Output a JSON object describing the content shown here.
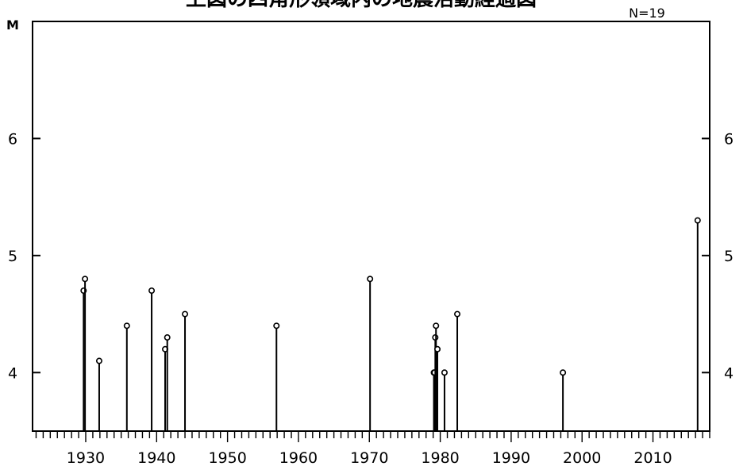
{
  "chart_data": {
    "type": "stem",
    "title": "上図の四角形領域内の地震活動経過図",
    "count_label": "N=19",
    "ylabel": "M",
    "xlim": [
      1922.5,
      2018
    ],
    "ylim": [
      3.5,
      7.0
    ],
    "x_ticks": [
      1930,
      1940,
      1950,
      1960,
      1970,
      1980,
      1990,
      2000,
      2010
    ],
    "y_ticks": [
      4,
      5,
      6
    ],
    "grid": false,
    "points": [
      {
        "x": 1929.7,
        "y": 4.7
      },
      {
        "x": 1929.9,
        "y": 4.8
      },
      {
        "x": 1931.9,
        "y": 4.1
      },
      {
        "x": 1935.8,
        "y": 4.4
      },
      {
        "x": 1939.3,
        "y": 4.7
      },
      {
        "x": 1941.2,
        "y": 4.2
      },
      {
        "x": 1941.5,
        "y": 4.3
      },
      {
        "x": 1944.0,
        "y": 4.5
      },
      {
        "x": 1956.9,
        "y": 4.4
      },
      {
        "x": 1970.1,
        "y": 4.8
      },
      {
        "x": 1979.1,
        "y": 4.0
      },
      {
        "x": 1979.2,
        "y": 4.0
      },
      {
        "x": 1979.3,
        "y": 4.3
      },
      {
        "x": 1979.4,
        "y": 4.4
      },
      {
        "x": 1979.6,
        "y": 4.2
      },
      {
        "x": 1980.6,
        "y": 4.0
      },
      {
        "x": 1982.4,
        "y": 4.5
      },
      {
        "x": 1997.3,
        "y": 4.0
      },
      {
        "x": 2016.3,
        "y": 5.3
      }
    ]
  }
}
